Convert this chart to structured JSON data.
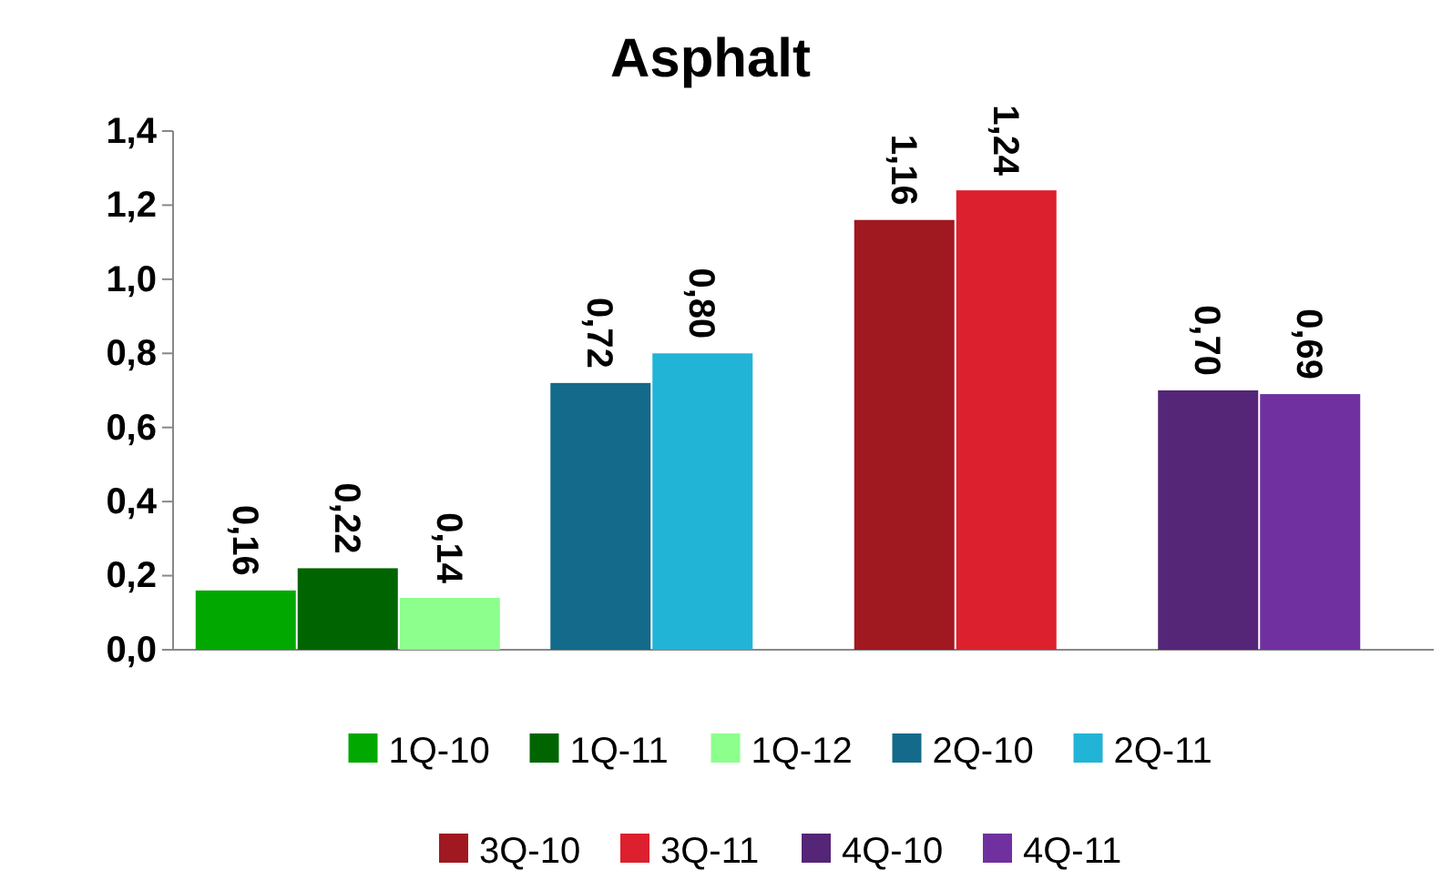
{
  "chart_data": {
    "type": "bar",
    "title": "Asphalt",
    "categories": [
      null,
      null,
      null,
      null
    ],
    "series": [
      {
        "name": "1Q-10",
        "color": "#00a800",
        "values": [
          0.16,
          null,
          null,
          null
        ],
        "value_labels": [
          "0,16",
          null,
          null,
          null
        ]
      },
      {
        "name": "1Q-11",
        "color": "#006400",
        "values": [
          0.22,
          null,
          null,
          null
        ],
        "value_labels": [
          "0,22",
          null,
          null,
          null
        ]
      },
      {
        "name": "1Q-12",
        "color": "#8cff8c",
        "values": [
          0.14,
          null,
          null,
          null
        ],
        "value_labels": [
          "0,14",
          null,
          null,
          null
        ]
      },
      {
        "name": "2Q-10",
        "color": "#146a8a",
        "values": [
          null,
          0.72,
          null,
          null
        ],
        "value_labels": [
          null,
          "0,72",
          null,
          null
        ]
      },
      {
        "name": "2Q-11",
        "color": "#22b4d6",
        "values": [
          null,
          0.8,
          null,
          null
        ],
        "value_labels": [
          null,
          "0,80",
          null,
          null
        ]
      },
      {
        "name": "3Q-10",
        "color": "#a01820",
        "values": [
          null,
          null,
          1.16,
          null
        ],
        "value_labels": [
          null,
          null,
          "1,16",
          null
        ]
      },
      {
        "name": "3Q-11",
        "color": "#dc202e",
        "values": [
          null,
          null,
          1.24,
          null
        ],
        "value_labels": [
          null,
          null,
          "1,24",
          null
        ]
      },
      {
        "name": "4Q-10",
        "color": "#552577",
        "values": [
          null,
          null,
          null,
          0.7
        ],
        "value_labels": [
          null,
          null,
          null,
          "0,70"
        ]
      },
      {
        "name": "4Q-11",
        "color": "#7030a0",
        "values": [
          null,
          null,
          null,
          0.69
        ],
        "value_labels": [
          null,
          null,
          null,
          "0,69"
        ]
      }
    ],
    "ylim": [
      0,
      1.4
    ],
    "yticks": [
      {
        "value": 0,
        "label": "0,0"
      },
      {
        "value": 0.2,
        "label": "0,2"
      },
      {
        "value": 0.4,
        "label": "0,4"
      },
      {
        "value": 0.6,
        "label": "0,6"
      },
      {
        "value": 0.8,
        "label": "0,8"
      },
      {
        "value": 1.0,
        "label": "1,0"
      },
      {
        "value": 1.2,
        "label": "1,2"
      },
      {
        "value": 1.4,
        "label": "1,4"
      }
    ],
    "grid": false,
    "legend": "bottom"
  }
}
